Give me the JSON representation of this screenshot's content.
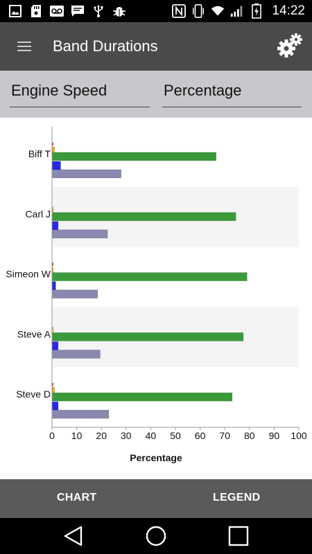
{
  "status_bar": {
    "time": "14:22",
    "left_icons": [
      "image-icon",
      "sd-card-icon",
      "voicemail-icon",
      "message-icon",
      "usb-icon",
      "bug-icon"
    ],
    "right_icons": [
      "nfc-icon",
      "phone-vibrate-icon",
      "wifi-icon",
      "signal-icon",
      "battery-charging-icon"
    ]
  },
  "app_bar": {
    "title": "Band Durations",
    "menu_icon": "hamburger-menu-icon",
    "settings_icon": "gears-icon"
  },
  "selectors": {
    "left": "Engine Speed",
    "right": "Percentage"
  },
  "chart_data": {
    "type": "bar",
    "orientation": "horizontal",
    "categories": [
      "Biff T",
      "Carl J",
      "Simeon W",
      "Steve A",
      "Steve D"
    ],
    "series": [
      {
        "color": "#e82020",
        "values": [
          0.5,
          0,
          0.5,
          0,
          0.5
        ]
      },
      {
        "color": "#f0a818",
        "values": [
          1,
          0.5,
          0.5,
          0.5,
          1
        ]
      },
      {
        "color": "#3a9a3a",
        "values": [
          66.5,
          74.5,
          79,
          77.5,
          73
        ]
      },
      {
        "color": "#2828e0",
        "values": [
          3.5,
          2.5,
          1.5,
          2.5,
          2.5
        ]
      },
      {
        "color": "#8888b0",
        "values": [
          28,
          22.5,
          18.5,
          19.5,
          23
        ]
      }
    ],
    "xlabel": "Percentage",
    "xlim": [
      0,
      100
    ],
    "xticks": [
      "0",
      "10",
      "20",
      "30",
      "40",
      "50",
      "60",
      "70",
      "80",
      "90",
      "100"
    ],
    "alternating_band_color": "#f4f4f4",
    "grid": false
  },
  "bottom_tabs": {
    "chart": "CHART",
    "legend": "LEGEND"
  },
  "nav_bar": {
    "icons": [
      "back-icon",
      "home-icon",
      "recents-icon"
    ]
  }
}
